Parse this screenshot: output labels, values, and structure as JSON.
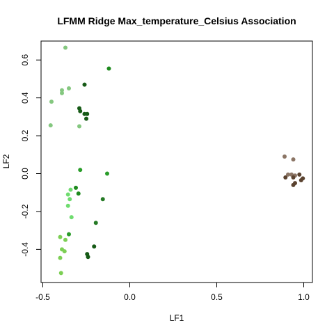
{
  "chart_data": {
    "type": "scatter",
    "title": "LFMM Ridge Max_temperature_Celsius Association",
    "xlabel": "LF1",
    "ylabel": "LF2",
    "xlim": [
      -0.51,
      1.05
    ],
    "ylim": [
      -0.575,
      0.7
    ],
    "x_ticks": [
      -0.5,
      0.0,
      0.5,
      1.0
    ],
    "x_tick_labels": [
      "-0.5",
      "0.0",
      "0.5",
      "1.0"
    ],
    "y_ticks": [
      -0.4,
      -0.2,
      0.0,
      0.2,
      0.4,
      0.6
    ],
    "y_tick_labels": [
      "-0.4",
      "-0.2",
      "0.0",
      "0.2",
      "0.4",
      "0.6"
    ],
    "grid": false,
    "legend": "none",
    "points": [
      {
        "x": -0.37,
        "y": 0.665,
        "color": "#84c77f"
      },
      {
        "x": -0.12,
        "y": 0.555,
        "color": "#1e8a1e"
      },
      {
        "x": -0.26,
        "y": 0.47,
        "color": "#165a16"
      },
      {
        "x": -0.35,
        "y": 0.45,
        "color": "#84c77f"
      },
      {
        "x": -0.39,
        "y": 0.44,
        "color": "#84c77f"
      },
      {
        "x": -0.39,
        "y": 0.425,
        "color": "#84c77f"
      },
      {
        "x": -0.45,
        "y": 0.38,
        "color": "#84c77f"
      },
      {
        "x": -0.29,
        "y": 0.345,
        "color": "#165a16"
      },
      {
        "x": -0.285,
        "y": 0.33,
        "color": "#165a16"
      },
      {
        "x": -0.26,
        "y": 0.315,
        "color": "#165a16"
      },
      {
        "x": -0.245,
        "y": 0.315,
        "color": "#165a16"
      },
      {
        "x": -0.25,
        "y": 0.29,
        "color": "#165a16"
      },
      {
        "x": -0.455,
        "y": 0.255,
        "color": "#84c77f"
      },
      {
        "x": -0.29,
        "y": 0.25,
        "color": "#84c77f"
      },
      {
        "x": -0.285,
        "y": 0.02,
        "color": "#2a9d2a"
      },
      {
        "x": -0.13,
        "y": 0.0,
        "color": "#2a9d2a"
      },
      {
        "x": -0.34,
        "y": -0.085,
        "color": "#6fdc6f"
      },
      {
        "x": -0.31,
        "y": -0.075,
        "color": "#1e8a1e"
      },
      {
        "x": -0.295,
        "y": -0.105,
        "color": "#1e8a1e"
      },
      {
        "x": -0.355,
        "y": -0.11,
        "color": "#6fdc6f"
      },
      {
        "x": -0.345,
        "y": -0.135,
        "color": "#6fdc6f"
      },
      {
        "x": -0.155,
        "y": -0.135,
        "color": "#257a25"
      },
      {
        "x": -0.355,
        "y": -0.17,
        "color": "#6fdc6f"
      },
      {
        "x": -0.335,
        "y": -0.23,
        "color": "#6fdc6f"
      },
      {
        "x": -0.195,
        "y": -0.26,
        "color": "#257a25"
      },
      {
        "x": -0.35,
        "y": -0.32,
        "color": "#2a9d2a"
      },
      {
        "x": -0.4,
        "y": -0.335,
        "color": "#7ccf54"
      },
      {
        "x": -0.37,
        "y": -0.35,
        "color": "#7ccf54"
      },
      {
        "x": -0.205,
        "y": -0.385,
        "color": "#165a16"
      },
      {
        "x": -0.39,
        "y": -0.4,
        "color": "#7ccf54"
      },
      {
        "x": -0.375,
        "y": -0.41,
        "color": "#7ccf54"
      },
      {
        "x": -0.245,
        "y": -0.425,
        "color": "#165a16"
      },
      {
        "x": -0.24,
        "y": -0.44,
        "color": "#165a16"
      },
      {
        "x": -0.4,
        "y": -0.445,
        "color": "#7ccf54"
      },
      {
        "x": -0.395,
        "y": -0.525,
        "color": "#7ccf54"
      },
      {
        "x": 0.89,
        "y": 0.09,
        "color": "#8b7565"
      },
      {
        "x": 0.94,
        "y": 0.075,
        "color": "#8b7565"
      },
      {
        "x": 0.91,
        "y": -0.005,
        "color": "#8b7565"
      },
      {
        "x": 0.93,
        "y": -0.005,
        "color": "#8b7565"
      },
      {
        "x": 0.95,
        "y": -0.01,
        "color": "#8b7565"
      },
      {
        "x": 0.975,
        "y": -0.005,
        "color": "#5b4330"
      },
      {
        "x": 0.895,
        "y": -0.02,
        "color": "#5b4330"
      },
      {
        "x": 0.94,
        "y": -0.02,
        "color": "#5b4330"
      },
      {
        "x": 0.995,
        "y": -0.025,
        "color": "#5b4330"
      },
      {
        "x": 0.985,
        "y": -0.035,
        "color": "#5b4330"
      },
      {
        "x": 0.95,
        "y": -0.05,
        "color": "#5b4330"
      },
      {
        "x": 0.94,
        "y": -0.06,
        "color": "#5b4330"
      }
    ]
  }
}
